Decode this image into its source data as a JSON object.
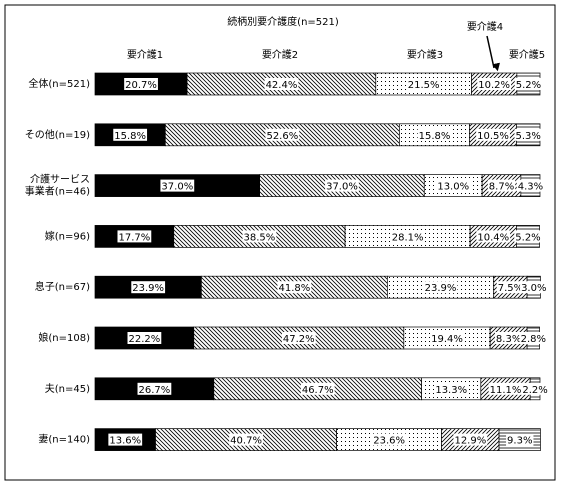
{
  "chart_data": {
    "type": "stacked-bar-horizontal",
    "title": "続柄別要介護度(n=521)",
    "categories": [
      "全体(n=521)",
      "その他(n=19)",
      "介護サービス\n事業者(n=46)",
      "嫁(n=96)",
      "息子(n=67)",
      "娘(n=108)",
      "夫(n=45)",
      "妻(n=140)"
    ],
    "xlim": [
      0,
      100
    ],
    "series": [
      {
        "name": "要介護1",
        "color": "#000000",
        "pattern": "solid",
        "values": [
          20.7,
          15.8,
          37.0,
          17.7,
          23.9,
          22.2,
          26.7,
          13.6
        ],
        "value_labels": [
          "20.7%",
          "15.8%",
          "37.0%",
          "17.7%",
          "23.9%",
          "22.2%",
          "26.7%",
          "13.6%"
        ]
      },
      {
        "name": "要介護2",
        "color": "#000000",
        "pattern": "backslash",
        "values": [
          42.4,
          52.6,
          37.0,
          38.5,
          41.8,
          47.2,
          46.7,
          40.7
        ],
        "value_labels": [
          "42.4%",
          "52.6%",
          "37.0%",
          "38.5%",
          "41.8%",
          "47.2%",
          "46.7%",
          "40.7%"
        ]
      },
      {
        "name": "要介護3",
        "color": "#000000",
        "pattern": "dots",
        "values": [
          21.5,
          15.8,
          13.0,
          28.1,
          23.9,
          19.4,
          13.3,
          23.6
        ],
        "value_labels": [
          "21.5%",
          "15.8%",
          "13.0%",
          "28.1%",
          "23.9%",
          "19.4%",
          "13.3%",
          "23.6%"
        ]
      },
      {
        "name": "要介護4",
        "color": "#000000",
        "pattern": "slash",
        "values": [
          10.2,
          10.5,
          8.7,
          10.4,
          7.5,
          8.3,
          11.1,
          12.9
        ],
        "value_labels": [
          "10.2%",
          "10.5%",
          "8.7%",
          "10.4%",
          "7.5%",
          "8.3%",
          "11.1%",
          "12.9%"
        ]
      },
      {
        "name": "要介護5",
        "color": "#000000",
        "pattern": "horizontal",
        "values": [
          5.2,
          5.3,
          4.3,
          5.2,
          3.0,
          2.8,
          2.2,
          9.3
        ],
        "value_labels": [
          "5.2%",
          "5.3%",
          "4.3%",
          "5.2%",
          "3.0%",
          "2.8%",
          "2.2%",
          "9.3%"
        ]
      }
    ]
  }
}
